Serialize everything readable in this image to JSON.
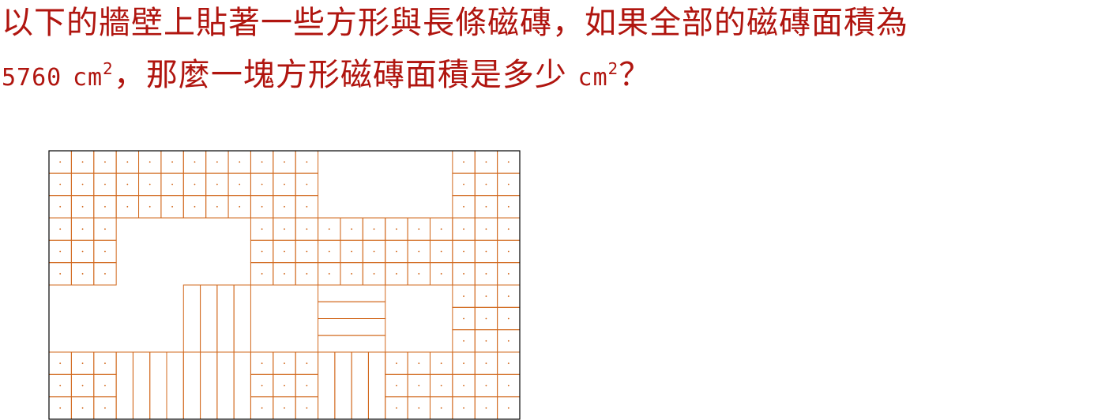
{
  "question": {
    "line1": "以下的牆壁上貼著一些方形與長條磁磚，如果全部的磁磚面積為",
    "line2_number": "5760",
    "unit_base": "cm",
    "unit_exponent": "2",
    "line2_text": "，那麼一塊方形磁磚面積是多少",
    "question_mark": "？"
  },
  "colors": {
    "text": "#b0150f",
    "tile": "#d2691e",
    "border": "#000000"
  },
  "wall": {
    "cols": 21,
    "rows": 12,
    "square_tile_blocks": [
      {
        "name": "top-left-block",
        "col": 0,
        "row": 0,
        "w": 12,
        "h": 3
      },
      {
        "name": "top-right-block",
        "col": 18,
        "row": 0,
        "w": 3,
        "h": 3
      },
      {
        "name": "left-middle-block",
        "col": 0,
        "row": 3,
        "w": 3,
        "h": 3
      },
      {
        "name": "center-band-block",
        "col": 9,
        "row": 3,
        "w": 12,
        "h": 3
      },
      {
        "name": "right-column-block",
        "col": 18,
        "row": 6,
        "w": 3,
        "h": 3
      },
      {
        "name": "bottom-left-block",
        "col": 0,
        "row": 9,
        "w": 3,
        "h": 3
      },
      {
        "name": "bottom-center-block",
        "col": 9,
        "row": 9,
        "w": 3,
        "h": 3
      },
      {
        "name": "bottom-right-block",
        "col": 15,
        "row": 9,
        "w": 6,
        "h": 3
      }
    ],
    "long_tile_groups": [
      {
        "name": "vertical-strips-center",
        "col": 6,
        "row": 6,
        "w": 3,
        "h": 3,
        "orientation": "vertical",
        "count": 4
      },
      {
        "name": "horizontal-strips-center",
        "col": 12,
        "row": 6,
        "w": 3,
        "h": 3,
        "orientation": "horizontal",
        "count": 4
      },
      {
        "name": "vertical-strips-bottom-left",
        "col": 3,
        "row": 9,
        "w": 6,
        "h": 3,
        "orientation": "vertical",
        "count": 8
      },
      {
        "name": "vertical-strips-bottom-center",
        "col": 12,
        "row": 9,
        "w": 3,
        "h": 3,
        "orientation": "vertical",
        "count": 4
      }
    ]
  }
}
